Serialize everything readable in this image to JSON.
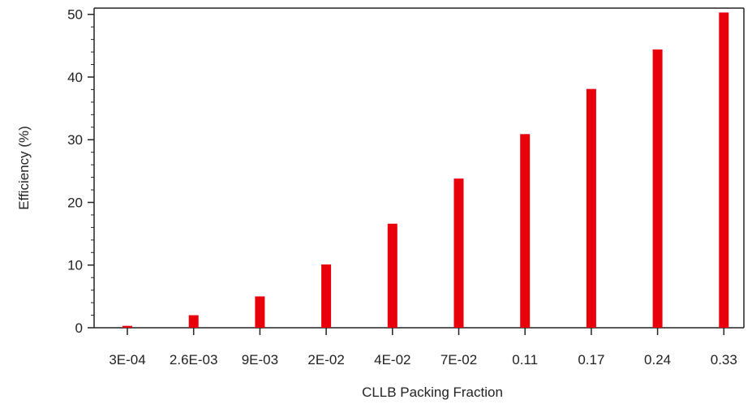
{
  "chart_data": {
    "type": "bar",
    "categories": [
      "3E-04",
      "2.6E-03",
      "9E-03",
      "2E-02",
      "4E-02",
      "7E-02",
      "0.11",
      "0.17",
      "0.24",
      "0.33"
    ],
    "values": [
      0.3,
      2.0,
      5.0,
      10.1,
      16.6,
      23.8,
      30.9,
      38.1,
      44.4,
      50.3
    ],
    "xlabel": "CLLB Packing Fraction",
    "ylabel": "Efficiency  (%)",
    "ylim": [
      0,
      51
    ],
    "yticks": [
      0,
      10,
      20,
      30,
      40,
      50
    ],
    "grid": false,
    "legend": "none",
    "bar_color": "#e8000b",
    "axis_color": "#222222"
  }
}
